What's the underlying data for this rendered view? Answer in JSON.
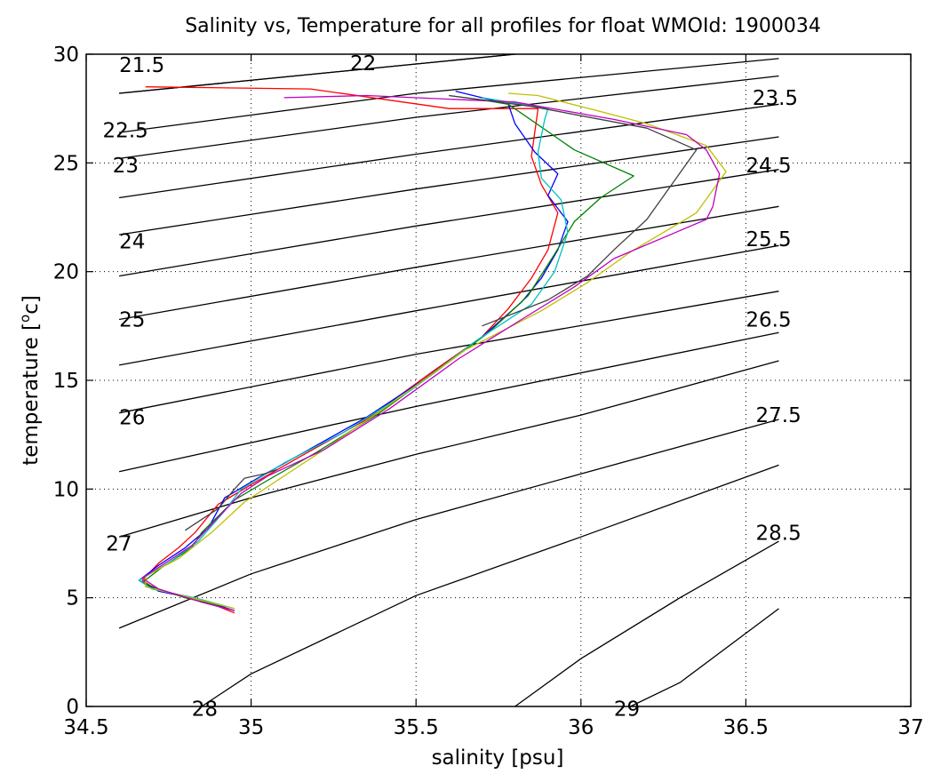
{
  "chart_data": {
    "type": "line",
    "title": "Salinity vs, Temperature for all profiles for float WMOId: 1900034",
    "xlabel": "salinity [psu]",
    "ylabel": "temperature [",
    "ylabel_sup": "o",
    "ylabel_unit": "c]",
    "xlim": [
      34.5,
      37
    ],
    "ylim": [
      0,
      30
    ],
    "grid": true,
    "x_ticks": [
      34.5,
      35,
      35.5,
      36,
      36.5,
      37
    ],
    "x_tick_labels": [
      "34.5",
      "35",
      "35.5",
      "36",
      "36.5",
      "37"
    ],
    "y_ticks": [
      0,
      5,
      10,
      15,
      20,
      25,
      30
    ],
    "y_tick_labels": [
      "0",
      "5",
      "10",
      "15",
      "20",
      "25",
      "30"
    ],
    "isopycnals": [
      {
        "sigma": 21.5,
        "points": [
          [
            34.6,
            28.2
          ],
          [
            35.8,
            30.0
          ]
        ]
      },
      {
        "sigma": 22.0,
        "points": [
          [
            34.6,
            28.2
          ],
          [
            35.2,
            29.1
          ],
          [
            35.8,
            30.0
          ]
        ]
      },
      {
        "sigma": 22.5,
        "points": [
          [
            34.6,
            26.4
          ],
          [
            35.5,
            28.2
          ],
          [
            36.6,
            29.8
          ]
        ]
      },
      {
        "sigma": 23.0,
        "points": [
          [
            34.6,
            25.2
          ],
          [
            35.5,
            27.1
          ],
          [
            36.6,
            29.0
          ]
        ]
      },
      {
        "sigma": 23.5,
        "points": [
          [
            34.6,
            23.4
          ],
          [
            35.5,
            25.4
          ],
          [
            36.6,
            27.7
          ]
        ]
      },
      {
        "sigma": 24.0,
        "points": [
          [
            34.6,
            21.7
          ],
          [
            35.5,
            23.8
          ],
          [
            36.6,
            26.2
          ]
        ]
      },
      {
        "sigma": 24.5,
        "points": [
          [
            34.6,
            19.8
          ],
          [
            35.5,
            22.1
          ],
          [
            36.6,
            24.7
          ]
        ]
      },
      {
        "sigma": 25.0,
        "points": [
          [
            34.6,
            17.8
          ],
          [
            35.5,
            20.2
          ],
          [
            36.6,
            23.0
          ]
        ]
      },
      {
        "sigma": 25.5,
        "points": [
          [
            34.6,
            15.7
          ],
          [
            35.5,
            18.2
          ],
          [
            36.6,
            21.2
          ]
        ]
      },
      {
        "sigma": 26.0,
        "points": [
          [
            34.6,
            13.5
          ],
          [
            35.5,
            16.2
          ],
          [
            36.6,
            19.1
          ]
        ]
      },
      {
        "sigma": 26.5,
        "points": [
          [
            34.6,
            10.8
          ],
          [
            35.5,
            13.8
          ],
          [
            36.6,
            17.2
          ]
        ]
      },
      {
        "sigma": 27.0,
        "points": [
          [
            34.6,
            7.8
          ],
          [
            35.0,
            9.6
          ],
          [
            35.5,
            11.6
          ],
          [
            36.0,
            13.4
          ],
          [
            36.6,
            15.9
          ]
        ]
      },
      {
        "sigma": 27.5,
        "points": [
          [
            34.6,
            3.6
          ],
          [
            35.0,
            6.1
          ],
          [
            35.5,
            8.6
          ],
          [
            36.0,
            10.7
          ],
          [
            36.6,
            13.2
          ]
        ]
      },
      {
        "sigma": 28.0,
        "points": [
          [
            34.85,
            0.0
          ],
          [
            35.0,
            1.5
          ],
          [
            35.5,
            5.1
          ],
          [
            36.0,
            7.8
          ],
          [
            36.6,
            11.1
          ]
        ]
      },
      {
        "sigma": 28.5,
        "points": [
          [
            35.8,
            0.0
          ],
          [
            36.0,
            2.2
          ],
          [
            36.3,
            5.0
          ],
          [
            36.6,
            7.6
          ]
        ]
      },
      {
        "sigma": 29.0,
        "points": [
          [
            36.15,
            0.0
          ],
          [
            36.3,
            1.1
          ],
          [
            36.6,
            4.5
          ]
        ]
      }
    ],
    "contour_labels": [
      {
        "text": "21.5",
        "s": 34.6,
        "t": 29.5
      },
      {
        "text": "22",
        "s": 35.3,
        "t": 29.6
      },
      {
        "text": "22.5",
        "s": 34.55,
        "t": 26.5
      },
      {
        "text": "23",
        "s": 34.58,
        "t": 24.9
      },
      {
        "text": "23.5",
        "s": 36.52,
        "t": 28.0
      },
      {
        "text": "24",
        "s": 34.6,
        "t": 21.4
      },
      {
        "text": "24.5",
        "s": 36.5,
        "t": 24.9
      },
      {
        "text": "25",
        "s": 34.6,
        "t": 17.8
      },
      {
        "text": "25.5",
        "s": 36.5,
        "t": 21.5
      },
      {
        "text": "26",
        "s": 34.6,
        "t": 13.3
      },
      {
        "text": "26.5",
        "s": 36.5,
        "t": 17.8
      },
      {
        "text": "27",
        "s": 34.56,
        "t": 7.5
      },
      {
        "text": "27.5",
        "s": 36.53,
        "t": 13.4
      },
      {
        "text": "28",
        "s": 34.82,
        "t": -0.1
      },
      {
        "text": "28.5",
        "s": 36.53,
        "t": 8.0
      },
      {
        "text": "29",
        "s": 36.1,
        "t": -0.1
      }
    ],
    "series": [
      {
        "color": "#ff0000",
        "points": [
          [
            34.95,
            4.3
          ],
          [
            34.85,
            4.9
          ],
          [
            34.72,
            5.3
          ],
          [
            34.67,
            5.8
          ],
          [
            34.72,
            6.6
          ],
          [
            34.78,
            7.3
          ],
          [
            34.83,
            8.0
          ],
          [
            34.9,
            9.3
          ],
          [
            35.0,
            10.2
          ],
          [
            35.15,
            11.5
          ],
          [
            35.35,
            13.2
          ],
          [
            35.55,
            15.4
          ],
          [
            35.7,
            17.0
          ],
          [
            35.78,
            18.3
          ],
          [
            35.85,
            19.7
          ],
          [
            35.9,
            21.0
          ],
          [
            35.93,
            22.7
          ],
          [
            35.88,
            24.0
          ],
          [
            35.85,
            25.3
          ],
          [
            35.87,
            27.5
          ],
          [
            35.6,
            27.5
          ],
          [
            35.18,
            28.4
          ],
          [
            34.68,
            28.5
          ]
        ]
      },
      {
        "color": "#0000ff",
        "points": [
          [
            34.95,
            4.4
          ],
          [
            34.85,
            4.9
          ],
          [
            34.72,
            5.3
          ],
          [
            34.66,
            5.8
          ],
          [
            34.72,
            6.5
          ],
          [
            34.8,
            7.3
          ],
          [
            34.87,
            8.2
          ],
          [
            34.92,
            9.6
          ],
          [
            35.02,
            10.5
          ],
          [
            35.15,
            11.6
          ],
          [
            35.35,
            13.3
          ],
          [
            35.52,
            15.0
          ],
          [
            35.7,
            17.0
          ],
          [
            35.82,
            18.6
          ],
          [
            35.88,
            19.7
          ],
          [
            35.93,
            21.0
          ],
          [
            35.96,
            22.3
          ],
          [
            35.9,
            23.5
          ],
          [
            35.93,
            24.5
          ],
          [
            35.86,
            25.5
          ],
          [
            35.8,
            26.8
          ],
          [
            35.78,
            27.7
          ],
          [
            35.62,
            28.3
          ]
        ]
      },
      {
        "color": "#008000",
        "points": [
          [
            34.92,
            4.6
          ],
          [
            34.8,
            5.0
          ],
          [
            34.72,
            5.4
          ],
          [
            34.67,
            5.7
          ],
          [
            34.73,
            6.4
          ],
          [
            34.82,
            7.3
          ],
          [
            34.85,
            8.0
          ],
          [
            34.95,
            9.5
          ],
          [
            35.05,
            10.4
          ],
          [
            35.2,
            11.7
          ],
          [
            35.38,
            13.4
          ],
          [
            35.56,
            15.4
          ],
          [
            35.72,
            17.2
          ],
          [
            35.84,
            18.9
          ],
          [
            35.92,
            20.8
          ],
          [
            35.98,
            22.3
          ],
          [
            36.06,
            23.4
          ],
          [
            36.16,
            24.4
          ],
          [
            35.98,
            25.6
          ],
          [
            35.78,
            27.7
          ],
          [
            35.7,
            27.9
          ],
          [
            35.6,
            28.1
          ]
        ]
      },
      {
        "color": "#00bfbf",
        "points": [
          [
            34.95,
            4.5
          ],
          [
            34.83,
            5.0
          ],
          [
            34.7,
            5.4
          ],
          [
            34.66,
            5.8
          ],
          [
            34.75,
            6.6
          ],
          [
            34.84,
            7.6
          ],
          [
            34.92,
            9.0
          ],
          [
            34.97,
            10.0
          ],
          [
            35.1,
            11.2
          ],
          [
            35.28,
            12.6
          ],
          [
            35.48,
            14.5
          ],
          [
            35.68,
            16.8
          ],
          [
            35.85,
            18.5
          ],
          [
            35.92,
            20.0
          ],
          [
            35.96,
            21.8
          ],
          [
            35.94,
            23.3
          ],
          [
            35.88,
            24.3
          ],
          [
            35.87,
            25.5
          ],
          [
            35.89,
            27.0
          ],
          [
            35.9,
            27.5
          ],
          [
            35.7,
            28.0
          ]
        ]
      },
      {
        "color": "#bfbf00",
        "points": [
          [
            34.95,
            4.5
          ],
          [
            34.82,
            5.0
          ],
          [
            34.68,
            5.5
          ],
          [
            34.68,
            6.0
          ],
          [
            34.78,
            6.8
          ],
          [
            34.88,
            8.0
          ],
          [
            34.98,
            9.4
          ],
          [
            35.08,
            10.4
          ],
          [
            35.24,
            12.0
          ],
          [
            35.43,
            14.0
          ],
          [
            35.65,
            16.4
          ],
          [
            35.88,
            18.2
          ],
          [
            36.02,
            19.5
          ],
          [
            36.15,
            20.9
          ],
          [
            36.35,
            22.7
          ],
          [
            36.44,
            24.6
          ],
          [
            36.38,
            25.8
          ],
          [
            36.2,
            26.8
          ],
          [
            36.05,
            27.4
          ],
          [
            35.87,
            28.1
          ],
          [
            35.78,
            28.2
          ]
        ]
      },
      {
        "color": "#bf00bf",
        "points": [
          [
            34.95,
            4.4
          ],
          [
            34.85,
            4.8
          ],
          [
            34.72,
            5.4
          ],
          [
            34.67,
            5.9
          ],
          [
            34.73,
            6.5
          ],
          [
            34.82,
            7.4
          ],
          [
            34.9,
            8.7
          ],
          [
            34.97,
            9.8
          ],
          [
            35.05,
            10.6
          ],
          [
            35.22,
            11.8
          ],
          [
            35.42,
            13.7
          ],
          [
            35.63,
            16.0
          ],
          [
            35.82,
            17.8
          ],
          [
            35.98,
            19.3
          ],
          [
            36.1,
            20.6
          ],
          [
            36.38,
            22.4
          ],
          [
            36.4,
            23.0
          ],
          [
            36.42,
            24.5
          ],
          [
            36.38,
            25.6
          ],
          [
            36.32,
            26.3
          ],
          [
            36.1,
            27.0
          ],
          [
            35.8,
            27.8
          ],
          [
            35.35,
            28.1
          ],
          [
            35.1,
            28.0
          ]
        ]
      },
      {
        "color": "#404040",
        "points": [
          [
            35.08,
            10.9
          ],
          [
            35.04,
            10.7
          ],
          [
            34.98,
            10.5
          ],
          [
            34.95,
            10.0
          ],
          [
            34.9,
            9.1
          ],
          [
            34.85,
            8.6
          ],
          [
            34.8,
            8.1
          ]
        ]
      },
      {
        "color": "#404040",
        "points": [
          [
            35.7,
            17.5
          ],
          [
            35.9,
            18.7
          ],
          [
            36.02,
            19.8
          ],
          [
            36.1,
            21.0
          ],
          [
            36.2,
            22.4
          ],
          [
            36.35,
            25.6
          ],
          [
            36.2,
            26.6
          ],
          [
            35.85,
            27.6
          ],
          [
            35.6,
            28.1
          ]
        ]
      }
    ]
  }
}
